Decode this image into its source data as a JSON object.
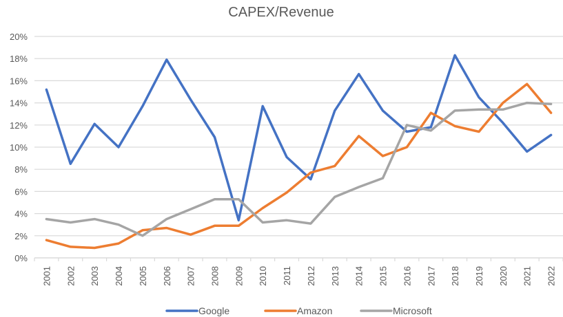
{
  "chart_data": {
    "type": "line",
    "title": "CAPEX/Revenue",
    "xlabel": "",
    "ylabel": "",
    "ylim": [
      0,
      20
    ],
    "yticks": [
      "0%",
      "2%",
      "4%",
      "6%",
      "8%",
      "10%",
      "12%",
      "14%",
      "16%",
      "18%",
      "20%"
    ],
    "grid": true,
    "legend_position": "bottom",
    "categories": [
      "2001",
      "2002",
      "2003",
      "2004",
      "2005",
      "2006",
      "2007",
      "2008",
      "2009",
      "2010",
      "2011",
      "2012",
      "2013",
      "2014",
      "2015",
      "2016",
      "2017",
      "2018",
      "2019",
      "2020",
      "2021",
      "2022"
    ],
    "series": [
      {
        "name": "Google",
        "color": "#4472C4",
        "values": [
          15.2,
          8.5,
          12.1,
          10.0,
          13.7,
          17.9,
          14.3,
          10.9,
          3.4,
          13.7,
          9.1,
          7.1,
          13.3,
          16.6,
          13.3,
          11.4,
          11.8,
          18.3,
          14.5,
          12.2,
          9.6,
          11.1
        ]
      },
      {
        "name": "Amazon",
        "color": "#ED7D31",
        "values": [
          1.6,
          1.0,
          0.9,
          1.3,
          2.5,
          2.7,
          2.1,
          2.9,
          2.9,
          4.5,
          5.9,
          7.7,
          8.3,
          11.0,
          9.2,
          10.0,
          13.1,
          11.9,
          11.4,
          14.0,
          15.7,
          13.1
        ]
      },
      {
        "name": "Microsoft",
        "color": "#A5A5A5",
        "values": [
          3.5,
          3.2,
          3.5,
          3.0,
          2.0,
          3.5,
          4.4,
          5.3,
          5.3,
          3.2,
          3.4,
          3.1,
          5.5,
          6.4,
          7.2,
          12.0,
          11.5,
          13.3,
          13.4,
          13.4,
          14.0,
          13.9
        ]
      }
    ]
  }
}
